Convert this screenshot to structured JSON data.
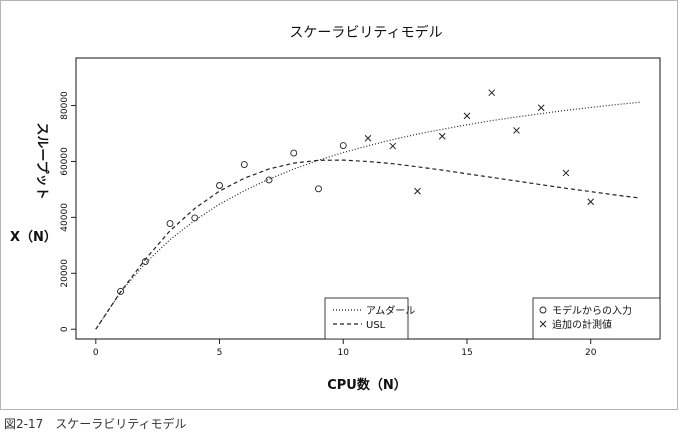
{
  "figure_caption": "図2-17　スケーラビリティモデル",
  "chart_data": {
    "type": "scatter",
    "title": "スケーラビリティモデル",
    "xlabel": "CPU数（N）",
    "ylabel": "スループットX（N）",
    "ylabel_line1": "スループット",
    "ylabel_line2": "X（N）",
    "xlim": [
      -0.8,
      22.8
    ],
    "ylim": [
      -3500,
      97000
    ],
    "x_ticks": [
      0,
      5,
      10,
      15,
      20
    ],
    "y_ticks": [
      0,
      20000,
      40000,
      60000,
      80000
    ],
    "grid": false,
    "series": [
      {
        "name": "モデルからの入力",
        "marker": "circle",
        "x": [
          1,
          2,
          3,
          4,
          5,
          6,
          7,
          8,
          9,
          10
        ],
        "y": [
          13500,
          24200,
          37800,
          39800,
          51400,
          58900,
          53400,
          63000,
          50200,
          65700
        ]
      },
      {
        "name": "追加の計測値",
        "marker": "x",
        "x": [
          11,
          12,
          13,
          14,
          15,
          16,
          17,
          18,
          19,
          20
        ],
        "y": [
          68300,
          65500,
          49400,
          69000,
          76300,
          84600,
          71100,
          79200,
          55900,
          45600
        ]
      },
      {
        "name": "アムダール",
        "line_style": "dotted",
        "x": [
          0,
          1,
          2,
          3,
          4,
          5,
          6,
          7,
          8,
          9,
          10,
          11,
          12,
          13,
          14,
          15,
          16,
          17,
          18,
          19,
          20,
          21,
          22
        ],
        "y": [
          0,
          13200,
          23600,
          32000,
          38900,
          44700,
          49500,
          53700,
          57300,
          60400,
          63200,
          65600,
          67800,
          69800,
          71500,
          73100,
          74600,
          75900,
          77100,
          78300,
          79300,
          80300,
          81200
        ]
      },
      {
        "name": "USL",
        "line_style": "dashed",
        "x": [
          0,
          1,
          2,
          3,
          4,
          5,
          6,
          7,
          8,
          9,
          10,
          11,
          12,
          13,
          14,
          15,
          16,
          17,
          18,
          19,
          20,
          21,
          22
        ],
        "y": [
          0,
          13300,
          25000,
          35200,
          43200,
          49400,
          54000,
          57300,
          59400,
          60400,
          60500,
          60000,
          59200,
          58100,
          56900,
          55600,
          54300,
          53000,
          51700,
          50400,
          49200,
          48000,
          46900
        ]
      }
    ],
    "legends": [
      {
        "position": "bottom-center",
        "entries": [
          "アムダール",
          "USL"
        ]
      },
      {
        "position": "bottom-right",
        "entries": [
          "モデルからの入力",
          "追加の計測値"
        ]
      }
    ],
    "colors": {
      "marks": "#222222",
      "frame": "#111111"
    }
  }
}
